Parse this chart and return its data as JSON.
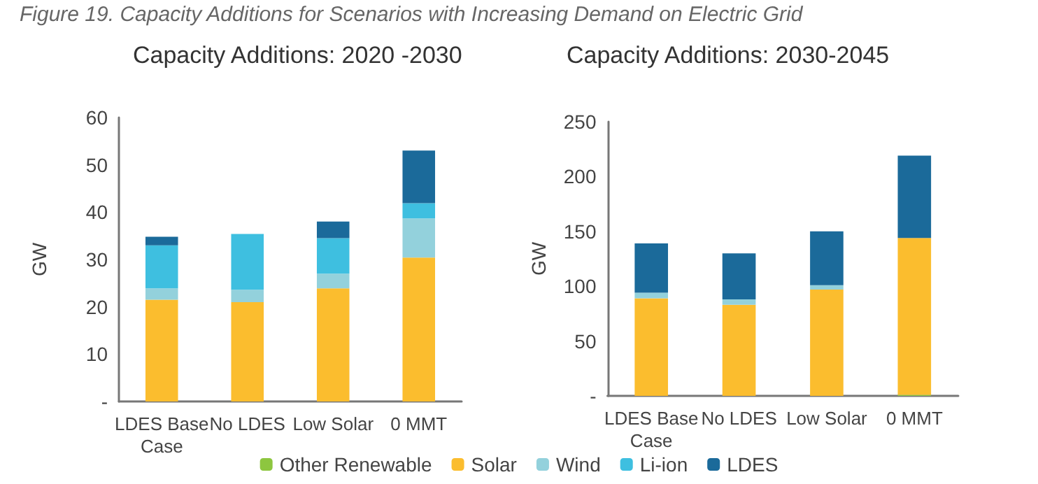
{
  "chart_data": [
    {
      "type": "bar",
      "title": "Capacity Additions: 2020 -2030",
      "annotations": [
        "Figure 19. Capacity Additions for Scenarios with Increasing Demand on Electric Grid"
      ],
      "ylabel": "GW",
      "categories": [
        "LDES Base Case",
        "No LDES",
        "Low Solar",
        "0 MMT"
      ],
      "stacked": true,
      "ylim": [
        0,
        60
      ],
      "yticks": [
        {
          "value": 0,
          "label": "-"
        },
        10,
        20,
        30,
        40,
        50,
        60
      ],
      "grid": false,
      "legend": "bottom",
      "series": [
        {
          "name": "Other Renewable",
          "color": "#8dc63f",
          "values": [
            0,
            0,
            0,
            0
          ]
        },
        {
          "name": "Solar",
          "color": "#fbbd2e",
          "values": [
            21.5,
            21.0,
            23.9,
            30.4
          ]
        },
        {
          "name": "Wind",
          "color": "#93d1dc",
          "values": [
            2.4,
            2.6,
            3.1,
            8.3
          ]
        },
        {
          "name": "Li-ion",
          "color": "#3ebfe0",
          "values": [
            9.1,
            11.8,
            7.5,
            3.2
          ]
        },
        {
          "name": "LDES",
          "color": "#1b6a9a",
          "values": [
            1.8,
            0,
            3.5,
            11.1
          ]
        }
      ]
    },
    {
      "type": "bar",
      "title": "Capacity Additions: 2030-2045",
      "ylabel": "GW",
      "categories": [
        "LDES Base Case",
        "No LDES",
        "Low Solar",
        "0 MMT"
      ],
      "stacked": true,
      "ylim": [
        0,
        250
      ],
      "yticks": [
        {
          "value": 0,
          "label": "-"
        },
        50,
        100,
        150,
        200,
        250
      ],
      "grid": false,
      "series": [
        {
          "color": "#8dc63f",
          "values": [
            0,
            0,
            0,
            1
          ]
        },
        {
          "color": "#fbbd2e",
          "values": [
            89,
            83,
            97,
            143
          ]
        },
        {
          "color": "#93d1dc",
          "values": [
            5,
            5,
            4,
            0
          ]
        },
        {
          "color": "#3ebfe0",
          "values": [
            0,
            0,
            0,
            0
          ]
        },
        {
          "color": "#1b6a9a",
          "values": [
            45,
            42,
            49,
            75
          ]
        }
      ]
    }
  ]
}
